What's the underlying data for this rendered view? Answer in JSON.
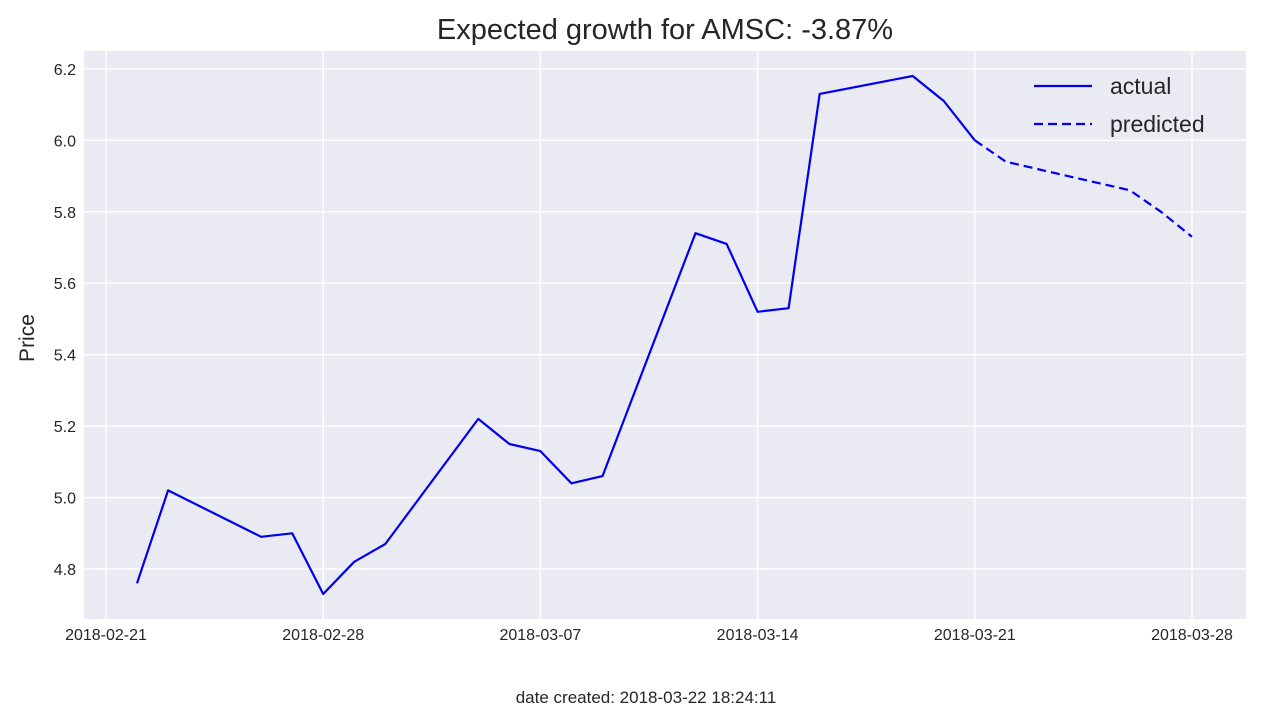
{
  "chart_data": {
    "type": "line",
    "title": "Expected growth for AMSC: -3.87%",
    "xlabel": "",
    "ylabel": "Price",
    "xlim": [
      "2018-02-20",
      "2018-03-28"
    ],
    "ylim": [
      4.66,
      6.25
    ],
    "x_ticks": [
      "2018-02-21",
      "2018-02-28",
      "2018-03-07",
      "2018-03-14",
      "2018-03-21",
      "2018-03-28"
    ],
    "y_ticks": [
      4.8,
      5.0,
      5.2,
      5.4,
      5.6,
      5.8,
      6.0,
      6.2
    ],
    "y_tick_labels": [
      "4.8",
      "5.0",
      "5.2",
      "5.4",
      "5.6",
      "5.8",
      "6.0",
      "6.2"
    ],
    "grid": true,
    "legend_position": "top-right",
    "series": [
      {
        "name": "actual",
        "style": "solid",
        "color": "#0000ee",
        "points": [
          {
            "x": "2018-02-22",
            "y": 4.76
          },
          {
            "x": "2018-02-23",
            "y": 5.02
          },
          {
            "x": "2018-02-26",
            "y": 4.89
          },
          {
            "x": "2018-02-27",
            "y": 4.9
          },
          {
            "x": "2018-02-28",
            "y": 4.73
          },
          {
            "x": "2018-03-01",
            "y": 4.82
          },
          {
            "x": "2018-03-02",
            "y": 4.87
          },
          {
            "x": "2018-03-05",
            "y": 5.22
          },
          {
            "x": "2018-03-06",
            "y": 5.15
          },
          {
            "x": "2018-03-07",
            "y": 5.13
          },
          {
            "x": "2018-03-08",
            "y": 5.04
          },
          {
            "x": "2018-03-09",
            "y": 5.06
          },
          {
            "x": "2018-03-12",
            "y": 5.74
          },
          {
            "x": "2018-03-13",
            "y": 5.71
          },
          {
            "x": "2018-03-14",
            "y": 5.52
          },
          {
            "x": "2018-03-15",
            "y": 5.53
          },
          {
            "x": "2018-03-16",
            "y": 6.13
          },
          {
            "x": "2018-03-19",
            "y": 6.18
          },
          {
            "x": "2018-03-20",
            "y": 6.11
          },
          {
            "x": "2018-03-21",
            "y": 6.0
          }
        ]
      },
      {
        "name": "predicted",
        "style": "dashed",
        "color": "#0000ee",
        "points": [
          {
            "x": "2018-03-21",
            "y": 6.0
          },
          {
            "x": "2018-03-22",
            "y": 5.94
          },
          {
            "x": "2018-03-23",
            "y": 5.92
          },
          {
            "x": "2018-03-26",
            "y": 5.86
          },
          {
            "x": "2018-03-27",
            "y": 5.8
          },
          {
            "x": "2018-03-28",
            "y": 5.73
          }
        ]
      }
    ],
    "footer": "date created: 2018-03-22 18:24:11"
  },
  "colors": {
    "plot_background": "#eaeaf2",
    "grid": "#ffffff",
    "line": "#0000ee",
    "text": "#262626"
  }
}
